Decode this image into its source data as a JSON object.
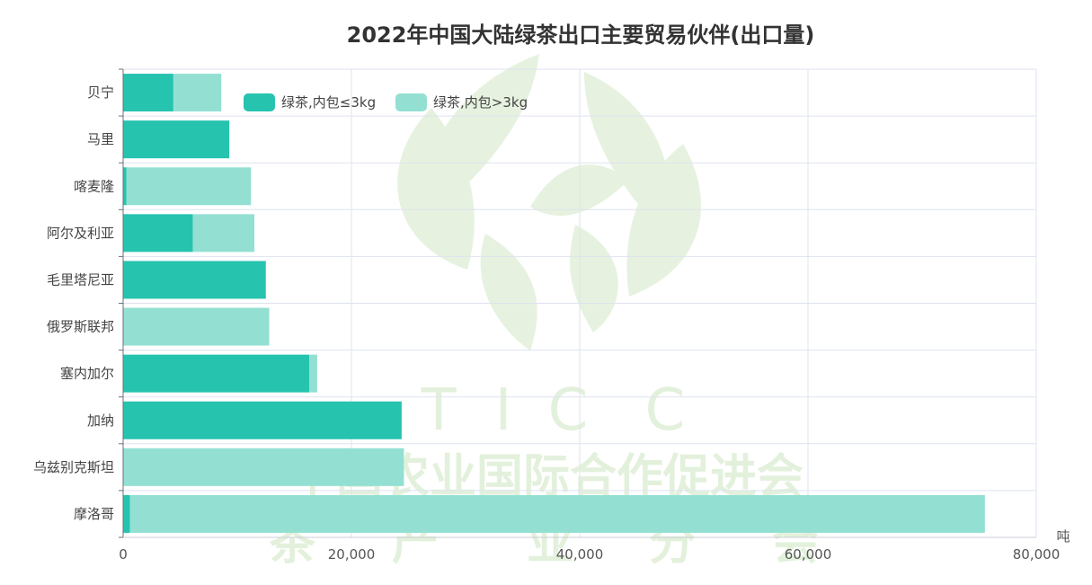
{
  "chart_data": {
    "type": "bar",
    "orientation": "horizontal",
    "stacked": true,
    "title": "2022年中国大陆绿茶出口主要贸易伙伴(出口量)",
    "unit": "吨",
    "categories": [
      "贝宁",
      "马里",
      "喀麦隆",
      "阿尔及利亚",
      "毛里塔尼亚",
      "俄罗斯联邦",
      "塞内加尔",
      "加纳",
      "乌兹别克斯坦",
      "摩洛哥"
    ],
    "series": [
      {
        "name": "绿茶,内包≤3kg",
        "color": "#26c3ae",
        "values": [
          4400,
          9300,
          300,
          6100,
          12500,
          0,
          16300,
          24400,
          0,
          600
        ]
      },
      {
        "name": "绿茶,内包>3kg",
        "color": "#93e0d3",
        "values": [
          4200,
          0,
          10900,
          5400,
          0,
          12800,
          700,
          0,
          24600,
          74900
        ]
      }
    ],
    "xlim": [
      0,
      80000
    ],
    "xticks": [
      0,
      20000,
      40000,
      60000,
      80000
    ],
    "xtick_labels": [
      "0",
      "20,000",
      "40,000",
      "60,000",
      "80,000"
    ],
    "grid": true,
    "legend_position": "top-left"
  },
  "watermark": {
    "letters": [
      "T",
      "I",
      "C",
      "C"
    ],
    "line1": "中国农业国际合作促进会",
    "line2": [
      "茶",
      "产",
      "业",
      "分",
      "会"
    ]
  }
}
